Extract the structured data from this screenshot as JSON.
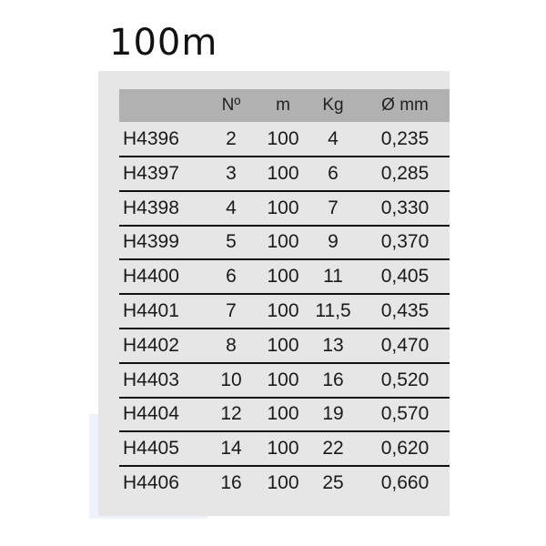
{
  "title": "100m",
  "table": {
    "headers": [
      "",
      "Nº",
      "m",
      "Kg",
      "Ø mm"
    ],
    "rows": [
      [
        "H4396",
        "2",
        "100",
        "4",
        "0,235"
      ],
      [
        "H4397",
        "3",
        "100",
        "6",
        "0,285"
      ],
      [
        "H4398",
        "4",
        "100",
        "7",
        "0,330"
      ],
      [
        "H4399",
        "5",
        "100",
        "9",
        "0,370"
      ],
      [
        "H4400",
        "6",
        "100",
        "11",
        "0,405"
      ],
      [
        "H4401",
        "7",
        "100",
        "11,5",
        "0,435"
      ],
      [
        "H4402",
        "8",
        "100",
        "13",
        "0,470"
      ],
      [
        "H4403",
        "10",
        "100",
        "16",
        "0,520"
      ],
      [
        "H4404",
        "12",
        "100",
        "19",
        "0,570"
      ],
      [
        "H4405",
        "14",
        "100",
        "22",
        "0,620"
      ],
      [
        "H4406",
        "16",
        "100",
        "25",
        "0,660"
      ]
    ]
  }
}
